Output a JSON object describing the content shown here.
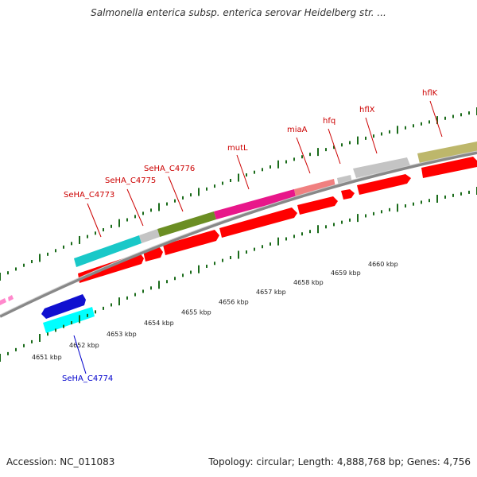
{
  "title": "Salmonella enterica subsp. enterica serovar Heidelberg str. ...",
  "accession_text": "Accession: NC_011083",
  "summary_text": "Topology: circular; Length: 4,888,768 bp; Genes: 4,756",
  "colors": {
    "forward_label": "#cc0000",
    "reverse_label": "#0000cc",
    "cds": "#ff0000",
    "backbone": "#888888",
    "tick": "#1a6b1a"
  },
  "kbp_scale": [
    {
      "label": "4651 kbp",
      "frac": 0.0
    },
    {
      "label": "4652 kbp",
      "frac": 0.1
    },
    {
      "label": "4653 kbp",
      "frac": 0.2
    },
    {
      "label": "4654 kbp",
      "frac": 0.3
    },
    {
      "label": "4655 kbp",
      "frac": 0.4
    },
    {
      "label": "4656 kbp",
      "frac": 0.5
    },
    {
      "label": "4657 kbp",
      "frac": 0.6
    },
    {
      "label": "4658 kbp",
      "frac": 0.7
    },
    {
      "label": "4659 kbp",
      "frac": 0.8
    },
    {
      "label": "4660 kbp",
      "frac": 0.9
    }
  ],
  "forward_genes": [
    {
      "label": "SeHA_C4773",
      "color": "#19c8c8"
    },
    {
      "label": "SeHA_C4775",
      "color": "#c4c4c4"
    },
    {
      "label": "SeHA_C4776",
      "color": "#6b8e23"
    },
    {
      "label": "mutL",
      "color": "#e8178a"
    },
    {
      "label": "miaA",
      "color": "#f08080"
    },
    {
      "label": "hfq",
      "color": "#c4c4c4"
    },
    {
      "label": "hflX",
      "color": "#c4c4c4"
    },
    {
      "label": "hflK",
      "color": "#bdb76b"
    }
  ],
  "reverse_genes": [
    {
      "label": "SeHA_C4774",
      "color": "#00ffff"
    }
  ],
  "other_reverse_feature": {
    "color": "#1010d0"
  }
}
